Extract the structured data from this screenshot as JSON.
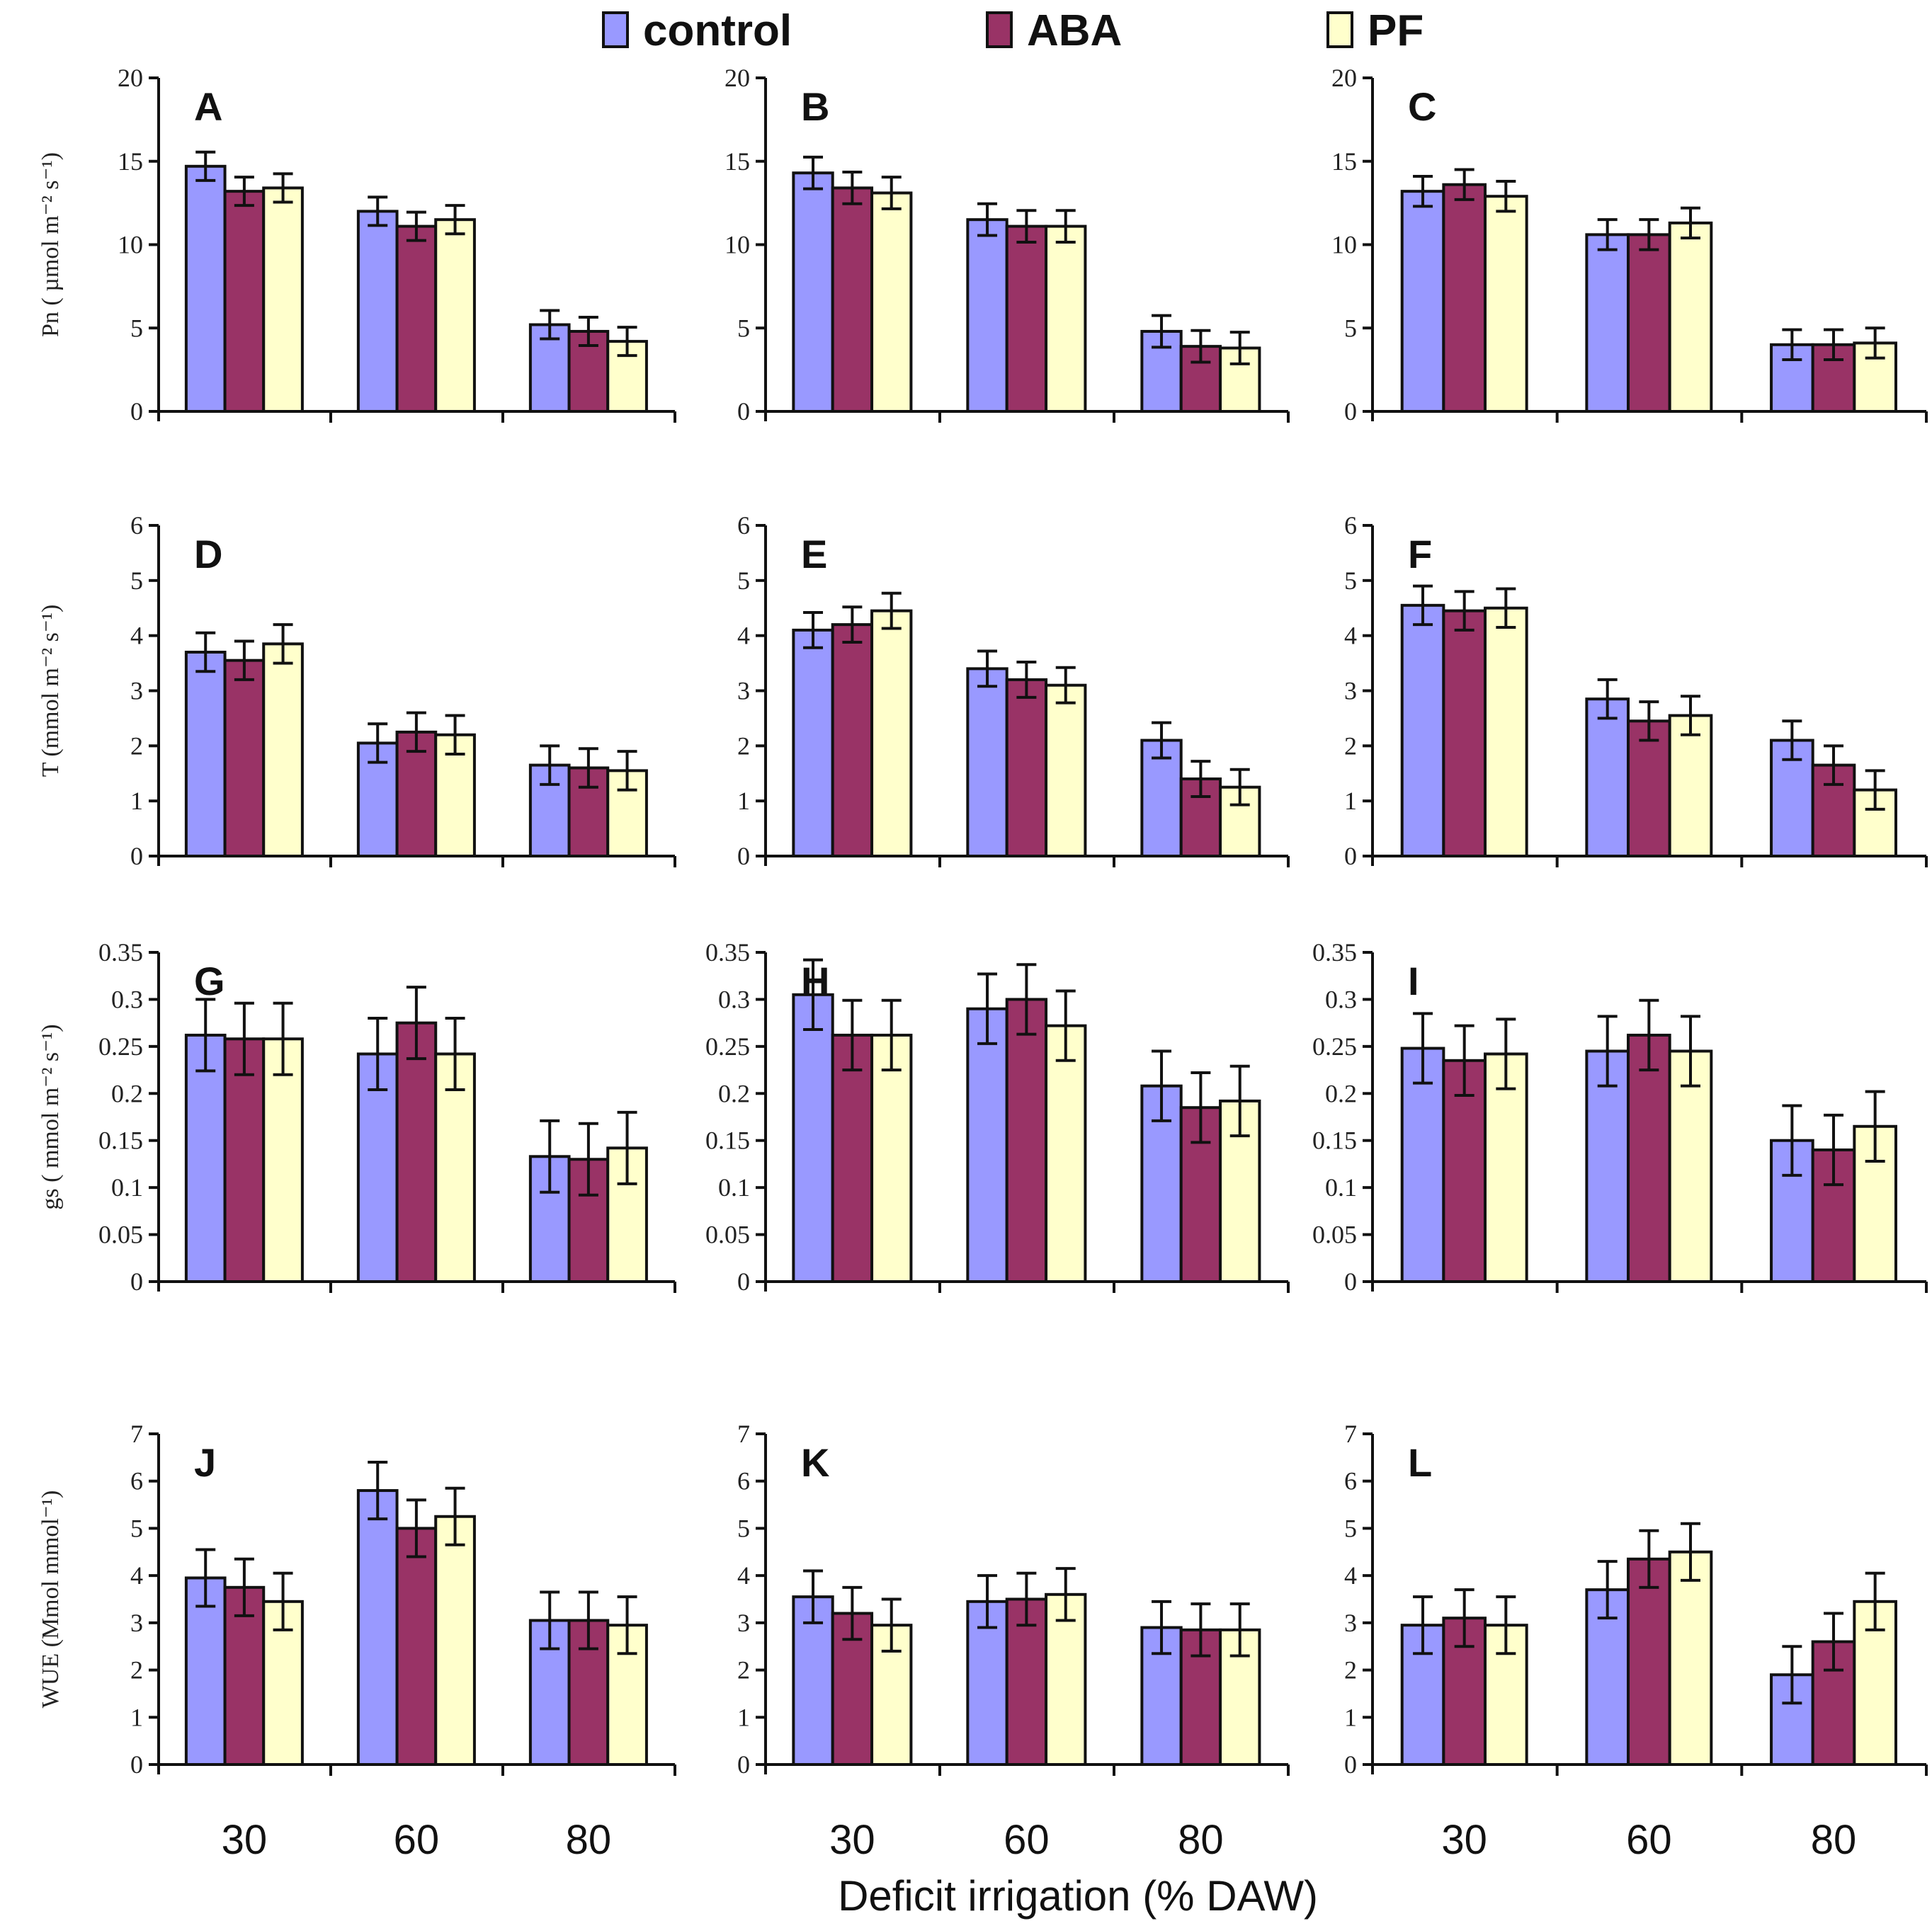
{
  "chart_data": {
    "type": "bar",
    "legend": {
      "position": "top",
      "entries": [
        "control",
        "ABA",
        "PF"
      ]
    },
    "series_colors": {
      "control": "#9999ff",
      "ABA": "#993366",
      "PF": "#ffffcc"
    },
    "categories": [
      "30",
      "60",
      "80"
    ],
    "xlabel": "Deficit irrigation (% DAW)",
    "rows": [
      {
        "ylabel": "Pn ( µmol  m⁻² s⁻¹)",
        "ylim": [
          0,
          20
        ],
        "yticks": [
          "0",
          "5",
          "10",
          "15",
          "20"
        ]
      },
      {
        "ylabel": "T (mmol  m⁻² s⁻¹)",
        "ylim": [
          0,
          6
        ],
        "yticks": [
          "0",
          "1",
          "2",
          "3",
          "4",
          "5",
          "6"
        ]
      },
      {
        "ylabel": "gs ( mmol  m⁻² s⁻¹)",
        "ylim": [
          0,
          0.35
        ],
        "yticks": [
          "0",
          "0.05",
          "0.1",
          "0.15",
          "0.2",
          "0.25",
          "0.3",
          "0.35"
        ]
      },
      {
        "ylabel": "WUE (Mmol mmol⁻¹)",
        "ylim": [
          0,
          7
        ],
        "yticks": [
          "0",
          "1",
          "2",
          "3",
          "4",
          "5",
          "6",
          "7"
        ]
      }
    ],
    "panels": [
      {
        "label": "A",
        "row": 0,
        "col": 0,
        "values": [
          [
            14.7,
            13.2,
            13.4
          ],
          [
            12.0,
            11.1,
            11.5
          ],
          [
            5.2,
            4.8,
            4.2
          ]
        ],
        "error": 0.85
      },
      {
        "label": "B",
        "row": 0,
        "col": 1,
        "values": [
          [
            14.3,
            13.4,
            13.1
          ],
          [
            11.5,
            11.1,
            11.1
          ],
          [
            4.8,
            3.9,
            3.8
          ]
        ],
        "error": 0.95
      },
      {
        "label": "C",
        "row": 0,
        "col": 2,
        "values": [
          [
            13.2,
            13.6,
            12.9
          ],
          [
            10.6,
            10.6,
            11.3
          ],
          [
            4.0,
            4.0,
            4.1
          ]
        ],
        "error": 0.9
      },
      {
        "label": "D",
        "row": 1,
        "col": 0,
        "values": [
          [
            3.7,
            3.55,
            3.85
          ],
          [
            2.05,
            2.25,
            2.2
          ],
          [
            1.65,
            1.6,
            1.55
          ]
        ],
        "error": 0.35
      },
      {
        "label": "E",
        "row": 1,
        "col": 1,
        "values": [
          [
            4.1,
            4.2,
            4.45
          ],
          [
            3.4,
            3.2,
            3.1
          ],
          [
            2.1,
            1.4,
            1.25
          ]
        ],
        "error": 0.32
      },
      {
        "label": "F",
        "row": 1,
        "col": 2,
        "values": [
          [
            4.55,
            4.45,
            4.5
          ],
          [
            2.85,
            2.45,
            2.55
          ],
          [
            2.1,
            1.65,
            1.2
          ]
        ],
        "error": 0.35
      },
      {
        "label": "G",
        "row": 2,
        "col": 0,
        "values": [
          [
            0.262,
            0.258,
            0.258
          ],
          [
            0.242,
            0.275,
            0.242
          ],
          [
            0.133,
            0.13,
            0.142
          ]
        ],
        "error": 0.038
      },
      {
        "label": "H",
        "row": 2,
        "col": 1,
        "values": [
          [
            0.305,
            0.262,
            0.262
          ],
          [
            0.29,
            0.3,
            0.272
          ],
          [
            0.208,
            0.185,
            0.192
          ]
        ],
        "error": 0.037
      },
      {
        "label": "I",
        "row": 2,
        "col": 2,
        "values": [
          [
            0.248,
            0.235,
            0.242
          ],
          [
            0.245,
            0.262,
            0.245
          ],
          [
            0.15,
            0.14,
            0.165
          ]
        ],
        "error": 0.037
      },
      {
        "label": "J",
        "row": 3,
        "col": 0,
        "values": [
          [
            3.95,
            3.75,
            3.45
          ],
          [
            5.8,
            5.0,
            5.25
          ],
          [
            3.05,
            3.05,
            2.95
          ]
        ],
        "error": 0.6
      },
      {
        "label": "K",
        "row": 3,
        "col": 1,
        "values": [
          [
            3.55,
            3.2,
            2.95
          ],
          [
            3.45,
            3.5,
            3.6
          ],
          [
            2.9,
            2.85,
            2.85
          ]
        ],
        "error": 0.55
      },
      {
        "label": "L",
        "row": 3,
        "col": 2,
        "values": [
          [
            2.95,
            3.1,
            2.95
          ],
          [
            3.7,
            4.35,
            4.5
          ],
          [
            1.9,
            2.6,
            3.45
          ]
        ],
        "error": 0.6
      }
    ]
  }
}
